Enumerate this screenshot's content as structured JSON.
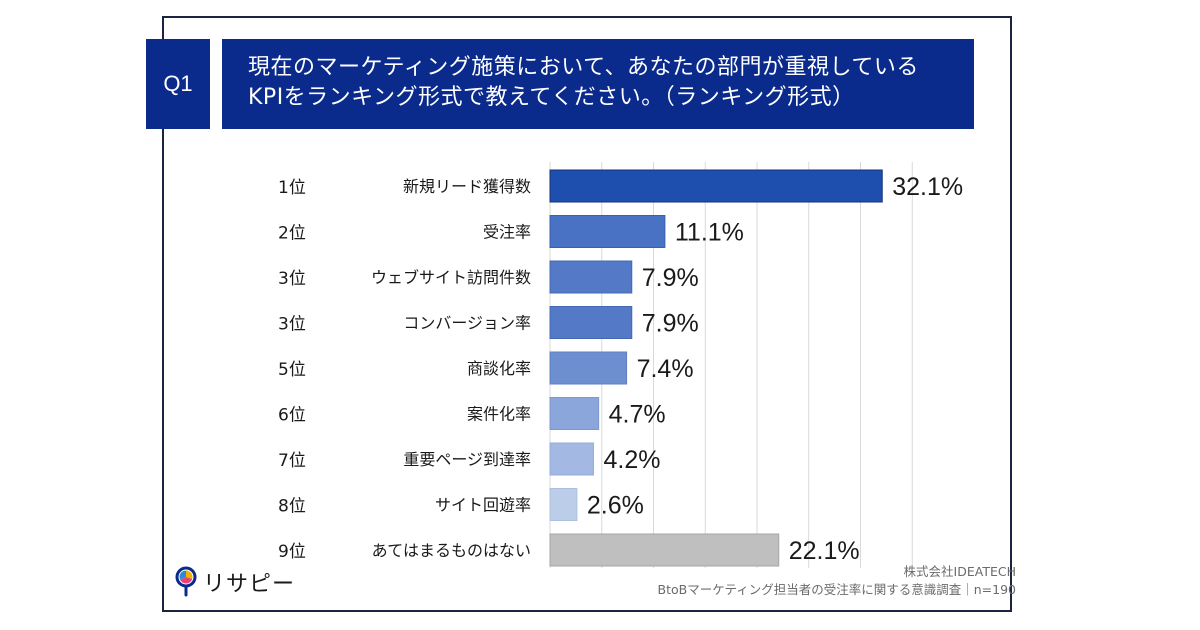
{
  "question": {
    "number": "Q1",
    "lines": [
      "現在のマーケティング施策において、あなたの部門が重視している",
      "KPIをランキング形式で教えてください。（ランキング形式）"
    ]
  },
  "chart_data": {
    "type": "bar",
    "orientation": "horizontal",
    "title": "現在のマーケティング施策において、あなたの部門が重視しているKPIをランキング形式で教えてください。（ランキング形式）",
    "xlabel": "",
    "ylabel": "",
    "xlim": [
      0,
      35
    ],
    "grid": true,
    "gridline_interval": 5,
    "ranks": [
      "1位",
      "2位",
      "3位",
      "3位",
      "5位",
      "6位",
      "7位",
      "8位",
      "9位"
    ],
    "categories": [
      "新規リード獲得数",
      "受注率",
      "ウェブサイト訪問件数",
      "コンバージョン率",
      "商談化率",
      "案件化率",
      "重要ページ到達率",
      "サイト回遊率",
      "あてはまるものはない"
    ],
    "values": [
      32.1,
      11.1,
      7.9,
      7.9,
      7.4,
      4.7,
      4.2,
      2.6,
      22.1
    ],
    "data_labels": [
      "32.1%",
      "11.1%",
      "7.9%",
      "7.9%",
      "7.4%",
      "4.7%",
      "4.2%",
      "2.6%",
      "22.1%"
    ],
    "bar_colors": [
      "#1f4fae",
      "#4a72c4",
      "#5479c6",
      "#5479c6",
      "#6d8fd0",
      "#8aa6db",
      "#a3b9e3",
      "#bccde9",
      "#bfbfbf"
    ],
    "bar_borders": [
      "#16327a",
      "#3a5fae",
      "#4369b6",
      "#4369b6",
      "#5f82c4",
      "#7b98cf",
      "#94acd8",
      "#adc0e0",
      "#a6a6a6"
    ],
    "legend": null
  },
  "footer": {
    "company": "株式会社IDEATECH",
    "survey": "BtoBマーケティング担当者の受注率に関する意識調査｜n=190"
  },
  "logo": {
    "text": "リサピー"
  }
}
